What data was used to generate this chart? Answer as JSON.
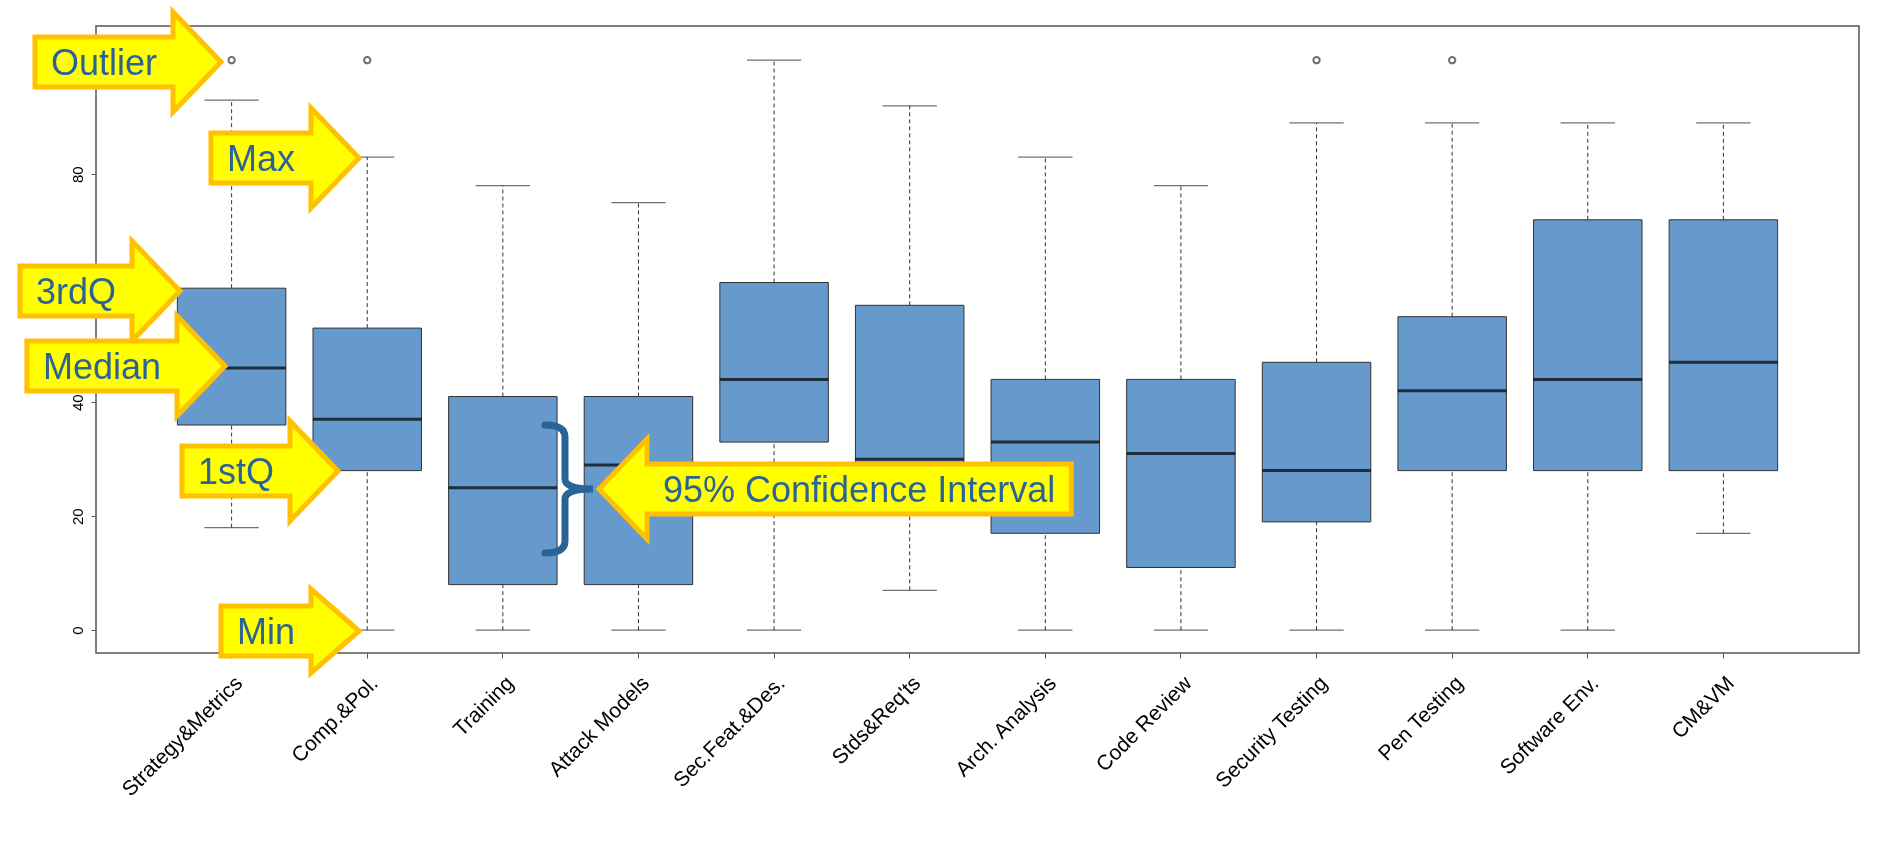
{
  "chart_data": {
    "type": "box",
    "categories": [
      "Strategy&Metrics",
      "Comp.&Pol.",
      "Training",
      "Attack Models",
      "Sec.Feat.&Des.",
      "Stds&Req'ts",
      "Arch. Analysis",
      "Code Review",
      "Security Testing",
      "Pen Testing",
      "Software Env.",
      "CM&VM"
    ],
    "series": [
      {
        "color": "#6699cc",
        "boxes": [
          {
            "low": 18,
            "q1": 36,
            "median": 46,
            "q3": 60,
            "high": 93,
            "outliers": [
              100
            ]
          },
          {
            "low": 0,
            "q1": 28,
            "median": 37,
            "q3": 53,
            "high": 83,
            "outliers": [
              100
            ]
          },
          {
            "low": 0,
            "q1": 8,
            "median": 25,
            "q3": 41,
            "high": 78
          },
          {
            "low": 0,
            "q1": 8,
            "median": 29,
            "q3": 41,
            "high": 75
          },
          {
            "low": 0,
            "q1": 33,
            "median": 44,
            "q3": 61,
            "high": 100
          },
          {
            "low": 7,
            "q1": 22,
            "median": 30,
            "q3": 57,
            "high": 92
          },
          {
            "low": 0,
            "q1": 17,
            "median": 33,
            "q3": 44,
            "high": 83
          },
          {
            "low": 0,
            "q1": 11,
            "median": 31,
            "q3": 44,
            "high": 78
          },
          {
            "low": 0,
            "q1": 19,
            "median": 28,
            "q3": 47,
            "high": 89,
            "outliers": [
              100
            ]
          },
          {
            "low": 0,
            "q1": 28,
            "median": 42,
            "q3": 55,
            "high": 89,
            "outliers": [
              100
            ]
          },
          {
            "low": 0,
            "q1": 28,
            "median": 44,
            "q3": 72,
            "high": 89
          },
          {
            "low": 17,
            "q1": 28,
            "median": 47,
            "q3": 72,
            "high": 89
          }
        ]
      }
    ],
    "ylim": [
      -4,
      106
    ],
    "yticks": [
      0,
      20,
      40,
      {
        "value": 60,
        "label": null
      },
      80
    ],
    "grid": false,
    "annotations": [
      "Outlier",
      "Max",
      "3rdQ",
      "Median",
      "1stQ",
      "Min",
      "95% Confidence Interval"
    ]
  }
}
